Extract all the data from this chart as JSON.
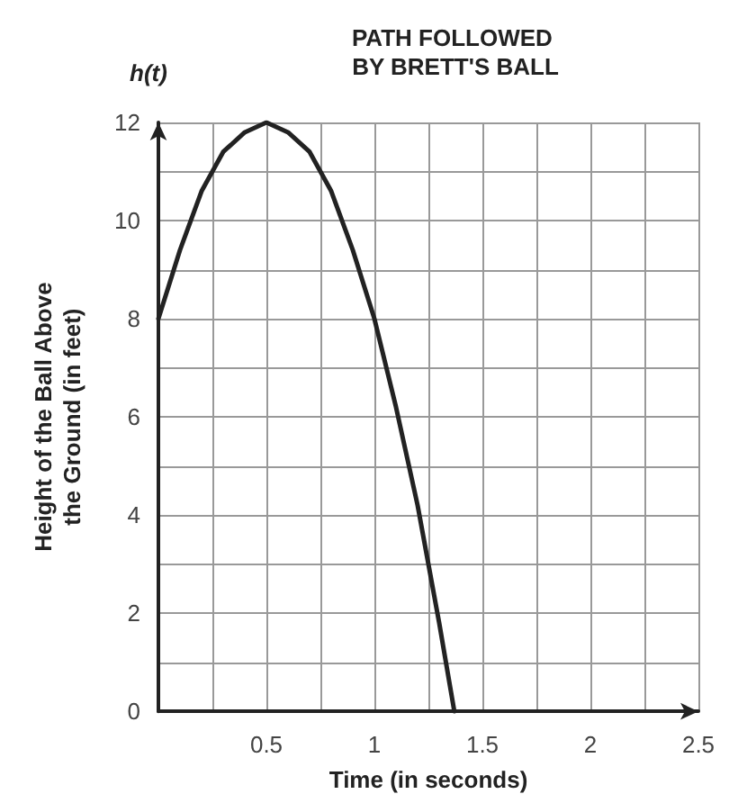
{
  "chart_data": {
    "type": "line",
    "title": "PATH FOLLOWED BY BRETT'S BALL",
    "xlabel": "Time (in seconds)",
    "ylabel": "Height of the Ball Above the Ground (in feet)",
    "annotations": [
      "h(t)"
    ],
    "x": [
      0,
      0.1,
      0.2,
      0.3,
      0.4,
      0.5,
      0.6,
      0.7,
      0.8,
      0.9,
      1.0,
      1.1,
      1.2,
      1.3,
      1.37
    ],
    "series": [
      {
        "color": "#222222",
        "values": [
          8,
          9.4,
          10.6,
          11.4,
          11.8,
          12,
          11.8,
          11.4,
          10.6,
          9.4,
          8,
          6.2,
          4.2,
          1.8,
          0
        ]
      }
    ],
    "xlim": [
      0,
      2.5
    ],
    "ylim": [
      0,
      12
    ],
    "xticks": [
      {
        "value": 0,
        "label": null
      },
      {
        "value": 0.25,
        "label": null
      },
      0.5,
      {
        "value": 0.75,
        "label": null
      },
      1,
      {
        "value": 1.25,
        "label": null
      },
      1.5,
      {
        "value": 1.75,
        "label": null
      },
      2,
      {
        "value": 2.25,
        "label": null
      },
      2.5
    ],
    "yticks": [
      0,
      {
        "value": 1,
        "label": null
      },
      2,
      {
        "value": 3,
        "label": null
      },
      4,
      {
        "value": 5,
        "label": null
      },
      6,
      {
        "value": 7,
        "label": null
      },
      8,
      {
        "value": 9,
        "label": null
      },
      10,
      {
        "value": 11,
        "label": null
      },
      12
    ],
    "grid": true,
    "marker": "none",
    "line_style": "solid"
  }
}
